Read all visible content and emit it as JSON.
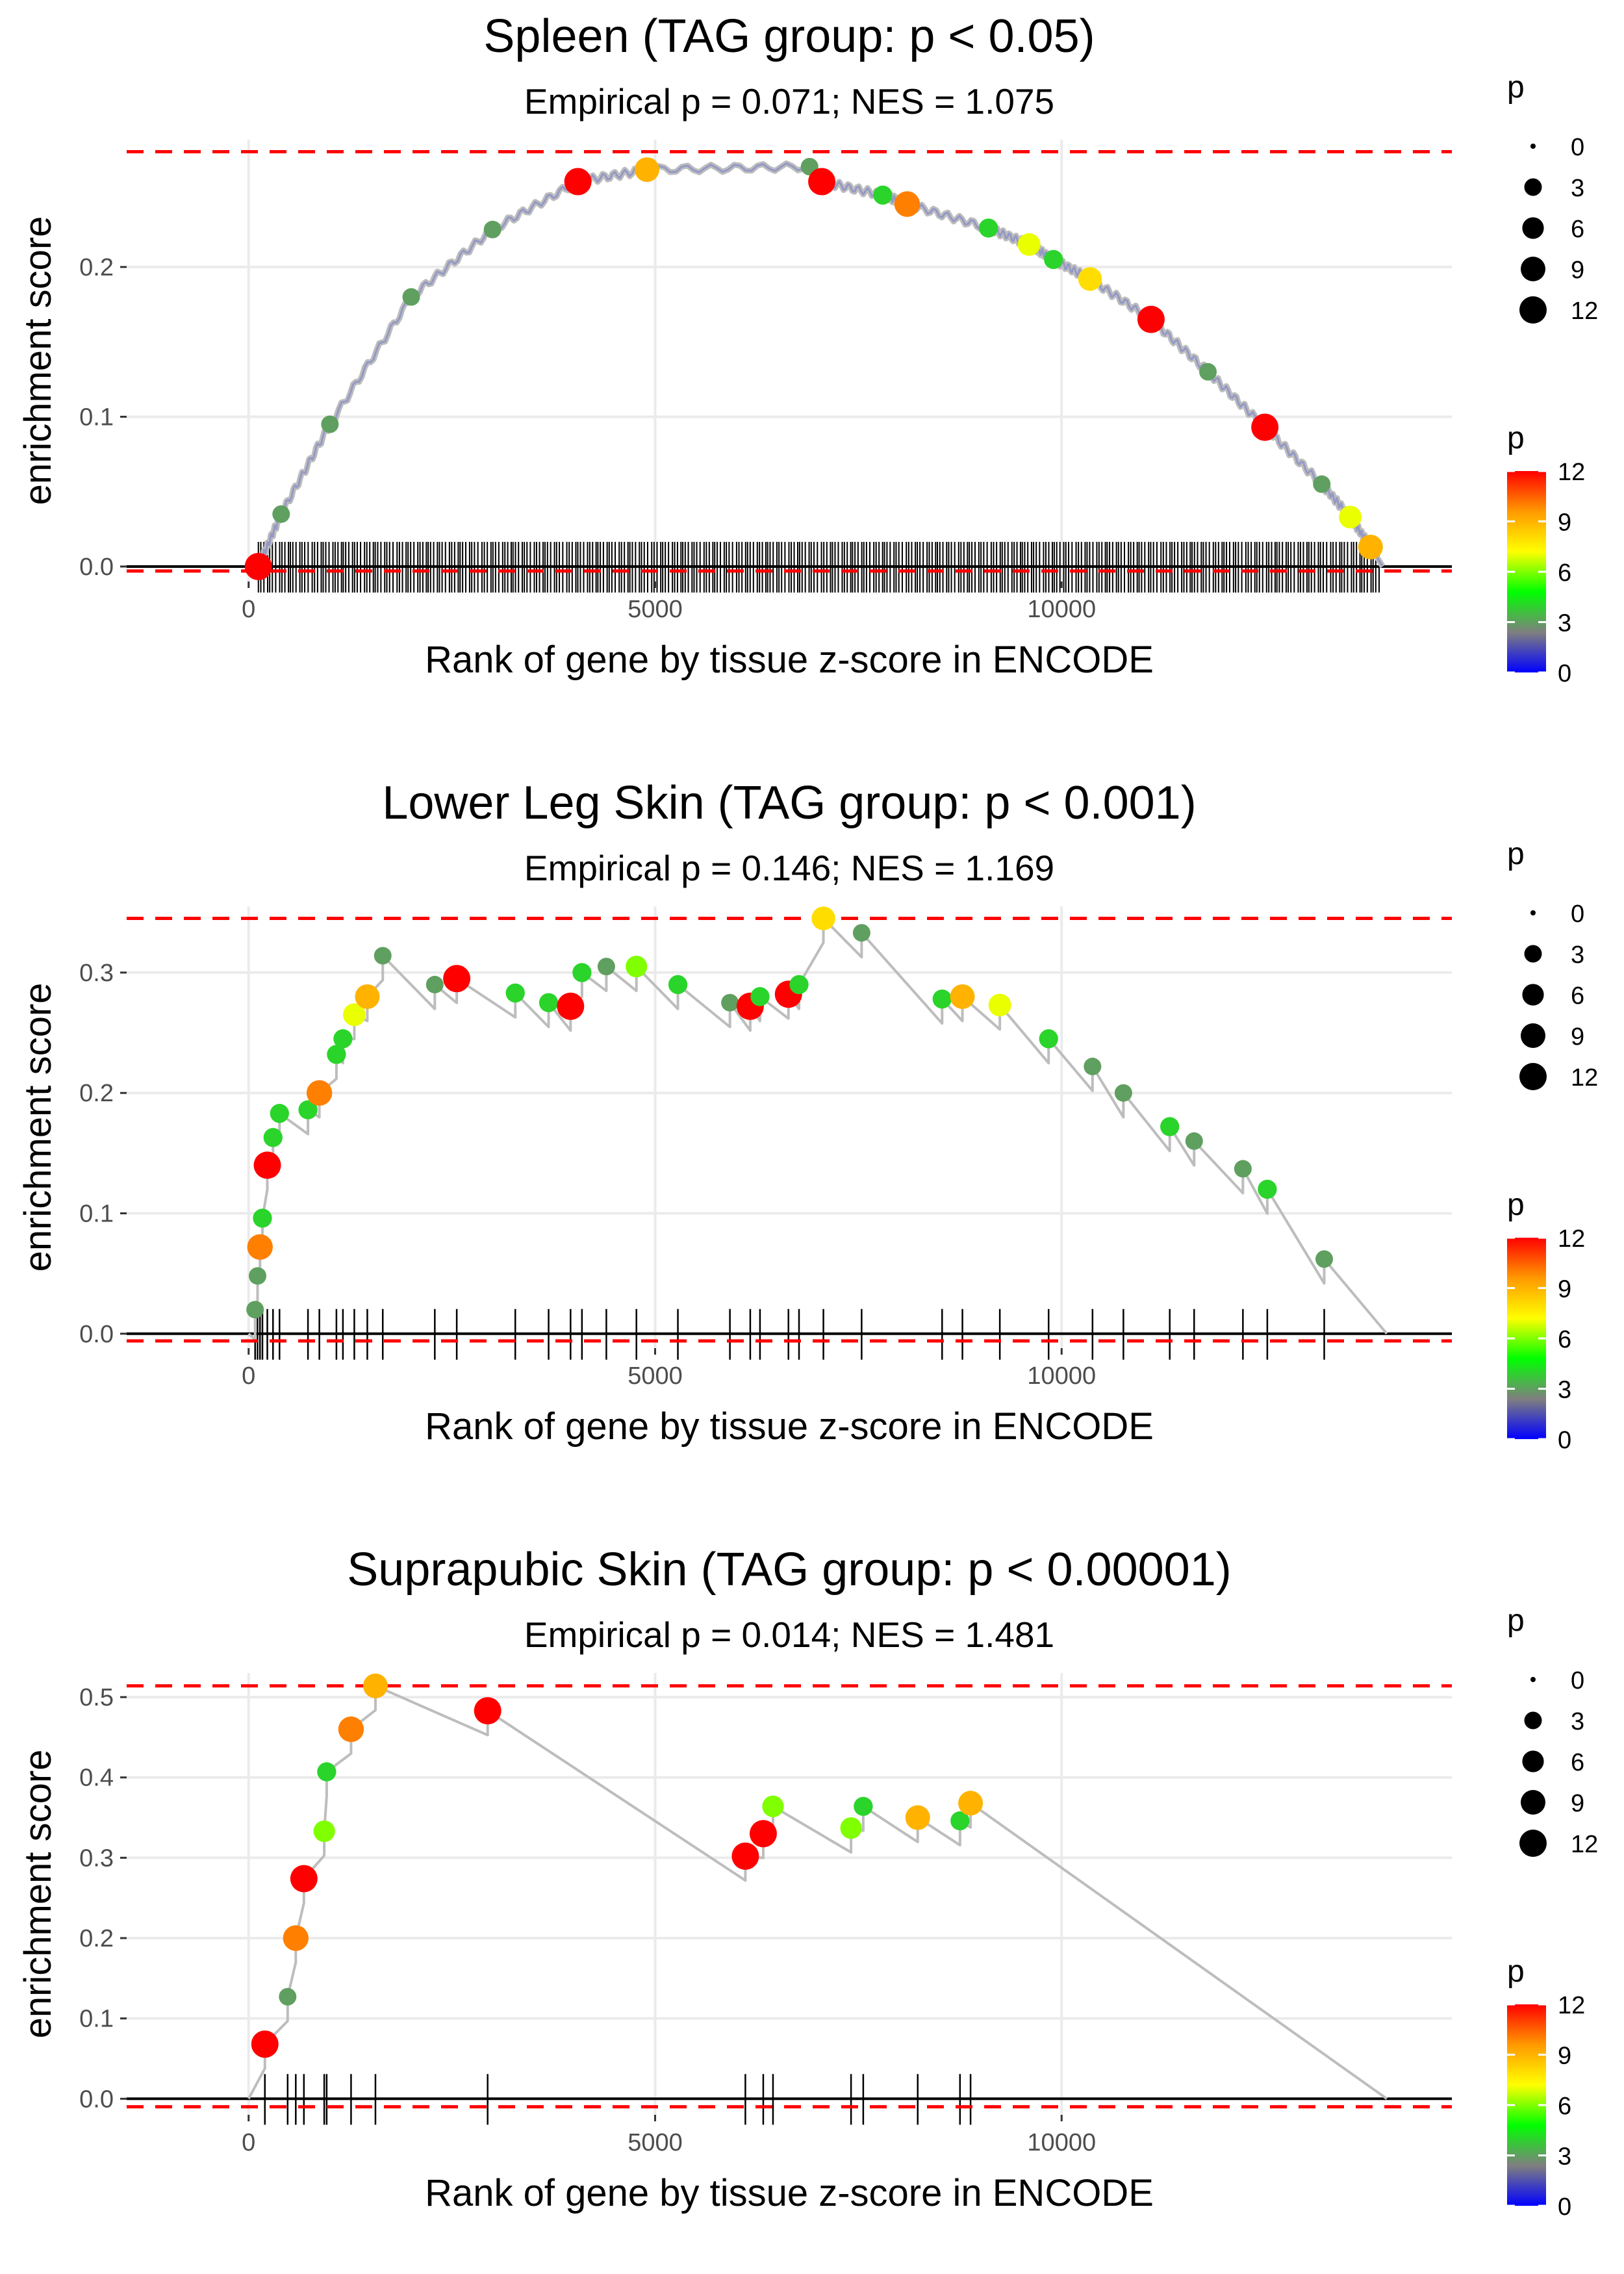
{
  "colors": {
    "grid": "#ebebeb",
    "curve": "#bdbdbd",
    "baseline": "#000000",
    "max_line": "#ff0000",
    "tick_mark": "#000000",
    "scale": [
      "#0000ff",
      "#7f7f7f",
      "#00ff00",
      "#ffff00",
      "#ff9900",
      "#ff0000"
    ]
  },
  "chart_data": [
    {
      "type": "line",
      "title": "Spleen (TAG group: p < 0.05)",
      "subtitle": "Empirical p = 0.071; NES = 1.075",
      "xlabel": "Rank of gene by tissue z-score in ENCODE",
      "ylabel": "enrichment score",
      "xlim": [
        -1500,
        14800
      ],
      "ylim": [
        -0.01,
        0.285
      ],
      "x_ticks": [
        0,
        5000,
        10000
      ],
      "x_tick_labels": [
        "0",
        "5000",
        "10000"
      ],
      "y_ticks": [
        0.0,
        0.1,
        0.2
      ],
      "y_tick_labels": [
        "0.0",
        "0.1",
        "0.2"
      ],
      "max_es": 0.277,
      "min_es": -0.003,
      "dense": true,
      "rug_range": [
        120,
        13950
      ],
      "points": [
        {
          "x": 120,
          "y": 0.0,
          "p": 12
        },
        {
          "x": 400,
          "y": 0.035,
          "p": 3
        },
        {
          "x": 1000,
          "y": 0.095,
          "p": 3
        },
        {
          "x": 2000,
          "y": 0.18,
          "p": 3
        },
        {
          "x": 3000,
          "y": 0.225,
          "p": 3
        },
        {
          "x": 4050,
          "y": 0.257,
          "p": 12
        },
        {
          "x": 4900,
          "y": 0.265,
          "p": 9
        },
        {
          "x": 6900,
          "y": 0.267,
          "p": 3
        },
        {
          "x": 7050,
          "y": 0.257,
          "p": 12
        },
        {
          "x": 7800,
          "y": 0.248,
          "p": 4
        },
        {
          "x": 8100,
          "y": 0.242,
          "p": 10
        },
        {
          "x": 9100,
          "y": 0.226,
          "p": 4
        },
        {
          "x": 9600,
          "y": 0.215,
          "p": 7
        },
        {
          "x": 9900,
          "y": 0.205,
          "p": 4
        },
        {
          "x": 10350,
          "y": 0.192,
          "p": 8
        },
        {
          "x": 11100,
          "y": 0.165,
          "p": 12
        },
        {
          "x": 11800,
          "y": 0.13,
          "p": 3
        },
        {
          "x": 12500,
          "y": 0.093,
          "p": 12
        },
        {
          "x": 13200,
          "y": 0.055,
          "p": 3
        },
        {
          "x": 13550,
          "y": 0.033,
          "p": 7
        },
        {
          "x": 13800,
          "y": 0.013,
          "p": 9
        }
      ],
      "legend": {
        "size_title": "p",
        "size_entries": [
          "0",
          "3",
          "6",
          "9",
          "12"
        ],
        "color_title": "p",
        "color_ticks": [
          "12",
          "9",
          "6",
          "3",
          "0"
        ]
      }
    },
    {
      "type": "line",
      "title": "Lower Leg Skin (TAG group: p < 0.001)",
      "subtitle": "Empirical p = 0.146; NES = 1.169",
      "xlabel": "Rank of gene by tissue z-score in ENCODE",
      "ylabel": "enrichment score",
      "xlim": [
        -1500,
        14800
      ],
      "ylim": [
        -0.012,
        0.355
      ],
      "x_ticks": [
        0,
        5000,
        10000
      ],
      "x_tick_labels": [
        "0",
        "5000",
        "10000"
      ],
      "y_ticks": [
        0.0,
        0.1,
        0.2,
        0.3
      ],
      "y_tick_labels": [
        "0.0",
        "0.1",
        "0.2",
        "0.3"
      ],
      "max_es": 0.345,
      "min_es": -0.006,
      "dense": false,
      "end_x": 14000,
      "points": [
        {
          "x": 80,
          "y": 0.02,
          "p": 3
        },
        {
          "x": 110,
          "y": 0.048,
          "p": 3
        },
        {
          "x": 140,
          "y": 0.072,
          "p": 10
        },
        {
          "x": 170,
          "y": 0.096,
          "p": 4
        },
        {
          "x": 230,
          "y": 0.14,
          "p": 12
        },
        {
          "x": 300,
          "y": 0.163,
          "p": 4
        },
        {
          "x": 380,
          "y": 0.183,
          "p": 4
        },
        {
          "x": 730,
          "y": 0.186,
          "p": 4
        },
        {
          "x": 870,
          "y": 0.2,
          "p": 10
        },
        {
          "x": 1080,
          "y": 0.232,
          "p": 4
        },
        {
          "x": 1160,
          "y": 0.245,
          "p": 4
        },
        {
          "x": 1300,
          "y": 0.265,
          "p": 7
        },
        {
          "x": 1460,
          "y": 0.28,
          "p": 9
        },
        {
          "x": 1650,
          "y": 0.314,
          "p": 3
        },
        {
          "x": 2290,
          "y": 0.29,
          "p": 3
        },
        {
          "x": 2560,
          "y": 0.295,
          "p": 12
        },
        {
          "x": 3280,
          "y": 0.283,
          "p": 4
        },
        {
          "x": 3690,
          "y": 0.275,
          "p": 4
        },
        {
          "x": 3960,
          "y": 0.272,
          "p": 12
        },
        {
          "x": 4100,
          "y": 0.3,
          "p": 4
        },
        {
          "x": 4400,
          "y": 0.305,
          "p": 3
        },
        {
          "x": 4770,
          "y": 0.305,
          "p": 6
        },
        {
          "x": 5280,
          "y": 0.29,
          "p": 4
        },
        {
          "x": 5920,
          "y": 0.275,
          "p": 3
        },
        {
          "x": 6170,
          "y": 0.272,
          "p": 12
        },
        {
          "x": 6290,
          "y": 0.28,
          "p": 4
        },
        {
          "x": 6640,
          "y": 0.282,
          "p": 12
        },
        {
          "x": 6770,
          "y": 0.29,
          "p": 4
        },
        {
          "x": 7070,
          "y": 0.345,
          "p": 8
        },
        {
          "x": 7540,
          "y": 0.333,
          "p": 3
        },
        {
          "x": 8530,
          "y": 0.278,
          "p": 4
        },
        {
          "x": 8780,
          "y": 0.28,
          "p": 9
        },
        {
          "x": 9240,
          "y": 0.273,
          "p": 7
        },
        {
          "x": 9840,
          "y": 0.245,
          "p": 4
        },
        {
          "x": 10380,
          "y": 0.222,
          "p": 3
        },
        {
          "x": 10760,
          "y": 0.2,
          "p": 3
        },
        {
          "x": 11330,
          "y": 0.172,
          "p": 4
        },
        {
          "x": 11630,
          "y": 0.16,
          "p": 3
        },
        {
          "x": 12230,
          "y": 0.137,
          "p": 3
        },
        {
          "x": 12530,
          "y": 0.12,
          "p": 4
        },
        {
          "x": 13230,
          "y": 0.062,
          "p": 3
        }
      ],
      "legend": {
        "size_title": "p",
        "size_entries": [
          "0",
          "3",
          "6",
          "9",
          "12"
        ],
        "color_title": "p",
        "color_ticks": [
          "12",
          "9",
          "6",
          "3",
          "0"
        ]
      }
    },
    {
      "type": "line",
      "title": "Suprapubic Skin (TAG group: p < 0.00001)",
      "subtitle": "Empirical p = 0.014; NES = 1.481",
      "xlabel": "Rank of gene by tissue z-score in ENCODE",
      "ylabel": "enrichment score",
      "xlim": [
        -1500,
        14800
      ],
      "ylim": [
        -0.02,
        0.53
      ],
      "x_ticks": [
        0,
        5000,
        10000
      ],
      "x_tick_labels": [
        "0",
        "5000",
        "10000"
      ],
      "y_ticks": [
        0.0,
        0.1,
        0.2,
        0.3,
        0.4,
        0.5
      ],
      "y_tick_labels": [
        "0.0",
        "0.1",
        "0.2",
        "0.3",
        "0.4",
        "0.5"
      ],
      "max_es": 0.514,
      "min_es": -0.01,
      "dense": false,
      "end_x": 14000,
      "points": [
        {
          "x": 200,
          "y": 0.068,
          "p": 12
        },
        {
          "x": 480,
          "y": 0.127,
          "p": 3
        },
        {
          "x": 580,
          "y": 0.2,
          "p": 10
        },
        {
          "x": 680,
          "y": 0.274,
          "p": 12
        },
        {
          "x": 930,
          "y": 0.333,
          "p": 6
        },
        {
          "x": 960,
          "y": 0.407,
          "p": 4
        },
        {
          "x": 1260,
          "y": 0.46,
          "p": 10
        },
        {
          "x": 1560,
          "y": 0.514,
          "p": 9
        },
        {
          "x": 2940,
          "y": 0.483,
          "p": 12
        },
        {
          "x": 6110,
          "y": 0.302,
          "p": 12
        },
        {
          "x": 6330,
          "y": 0.33,
          "p": 12
        },
        {
          "x": 6450,
          "y": 0.364,
          "p": 6
        },
        {
          "x": 7410,
          "y": 0.337,
          "p": 6
        },
        {
          "x": 7560,
          "y": 0.364,
          "p": 4
        },
        {
          "x": 8230,
          "y": 0.35,
          "p": 9
        },
        {
          "x": 8750,
          "y": 0.346,
          "p": 4
        },
        {
          "x": 8880,
          "y": 0.368,
          "p": 9
        }
      ],
      "legend": {
        "size_title": "p",
        "size_entries": [
          "0",
          "3",
          "6",
          "9",
          "12"
        ],
        "color_title": "p",
        "color_ticks": [
          "12",
          "9",
          "6",
          "3",
          "0"
        ]
      }
    }
  ]
}
